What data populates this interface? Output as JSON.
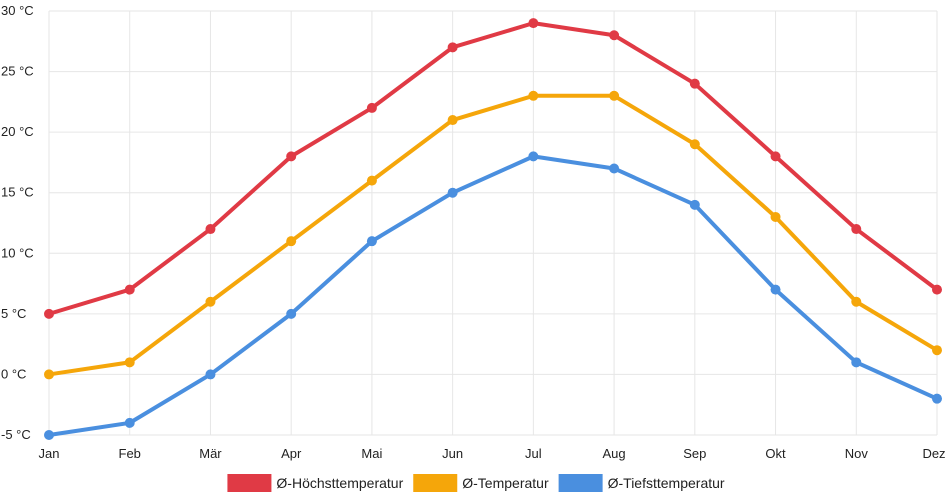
{
  "chart_data": {
    "type": "line",
    "categories": [
      "Jan",
      "Feb",
      "Mär",
      "Apr",
      "Mai",
      "Jun",
      "Jul",
      "Aug",
      "Sep",
      "Okt",
      "Nov",
      "Dez"
    ],
    "series": [
      {
        "name": "Ø-Höchsttemperatur",
        "color": "#e03a45",
        "values": [
          5,
          7,
          12,
          18,
          22,
          27,
          29,
          28,
          24,
          18,
          12,
          7
        ]
      },
      {
        "name": "Ø-Temperatur",
        "color": "#f5a60a",
        "values": [
          0,
          1,
          6,
          11,
          16,
          21,
          23,
          23,
          19,
          13,
          6,
          2
        ]
      },
      {
        "name": "Ø-Tiefsttemperatur",
        "color": "#4a8fdf",
        "values": [
          -5,
          -4,
          0,
          5,
          11,
          15,
          18,
          17,
          14,
          7,
          1,
          -2
        ]
      }
    ],
    "y_ticks": [
      "-5 °C",
      "0 °C",
      "5 °C",
      "10 °C",
      "15 °C",
      "20 °C",
      "25 °C",
      "30 °C"
    ],
    "ylim": [
      -5,
      30
    ],
    "title": "",
    "xlabel": "",
    "ylabel": "",
    "grid": true,
    "legend_position": "bottom-center"
  }
}
